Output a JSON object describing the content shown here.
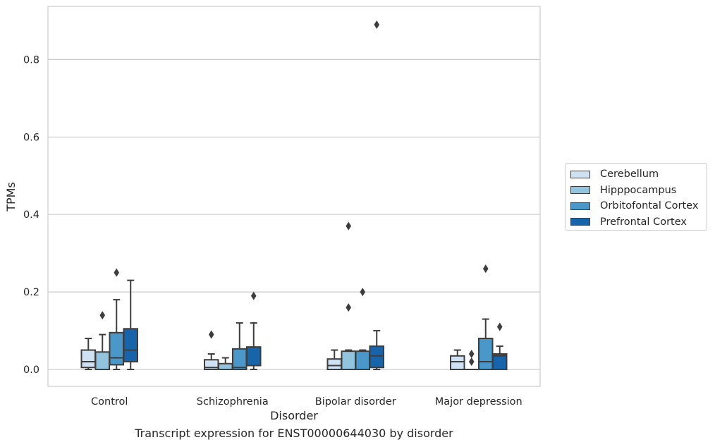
{
  "caption": "Transcript expression for ENST00000644030 by disorder",
  "chart_data": {
    "type": "boxplot",
    "xlabel": "Disorder",
    "ylabel": "TPMs",
    "ylim": [
      -0.043,
      0.935
    ],
    "yticks": [
      "0.0",
      "0.2",
      "0.4",
      "0.6",
      "0.8"
    ],
    "ytick_values": [
      0.0,
      0.2,
      0.4,
      0.6,
      0.8
    ],
    "grid": "horizontal",
    "legend_placement": "outside-right",
    "categories": [
      "Control",
      "Schizophrenia",
      "Bipolar disorder",
      "Major depression"
    ],
    "series": [
      {
        "name": "Cerebellum",
        "color": "#cfe1f2",
        "boxes": [
          {
            "whislo": 0.0,
            "q1": 0.005,
            "med": 0.02,
            "q3": 0.05,
            "whishi": 0.08,
            "fliers": []
          },
          {
            "whislo": 0.0,
            "q1": 0.0,
            "med": 0.005,
            "q3": 0.025,
            "whishi": 0.04,
            "fliers": [
              0.09
            ]
          },
          {
            "whislo": 0.0,
            "q1": 0.0,
            "med": 0.01,
            "q3": 0.027,
            "whishi": 0.05,
            "fliers": []
          },
          {
            "whislo": 0.0,
            "q1": 0.0,
            "med": 0.02,
            "q3": 0.035,
            "whishi": 0.05,
            "fliers": []
          }
        ]
      },
      {
        "name": "Hipppocampus",
        "color": "#93c4de",
        "boxes": [
          {
            "whislo": 0.0,
            "q1": 0.0,
            "med": 0.0,
            "q3": 0.045,
            "whishi": 0.09,
            "fliers": [
              0.14
            ]
          },
          {
            "whislo": 0.0,
            "q1": 0.0,
            "med": 0.0,
            "q3": 0.015,
            "whishi": 0.03,
            "fliers": []
          },
          {
            "whislo": 0.0,
            "q1": 0.0,
            "med": 0.0,
            "q3": 0.047,
            "whishi": 0.05,
            "fliers": [
              0.16,
              0.37
            ]
          },
          {
            "whislo": 0.0,
            "q1": 0.0,
            "med": 0.0,
            "q3": 0.0,
            "whishi": 0.0,
            "fliers": [
              0.02,
              0.04
            ]
          }
        ]
      },
      {
        "name": "Orbitofontal Cortex",
        "color": "#4a98c9",
        "boxes": [
          {
            "whislo": 0.0,
            "q1": 0.012,
            "med": 0.03,
            "q3": 0.095,
            "whishi": 0.18,
            "fliers": [
              0.25
            ]
          },
          {
            "whislo": 0.0,
            "q1": 0.0,
            "med": 0.005,
            "q3": 0.053,
            "whishi": 0.12,
            "fliers": []
          },
          {
            "whislo": 0.0,
            "q1": 0.0,
            "med": 0.0,
            "q3": 0.047,
            "whishi": 0.05,
            "fliers": [
              0.2
            ]
          },
          {
            "whislo": 0.0,
            "q1": 0.0,
            "med": 0.02,
            "q3": 0.08,
            "whishi": 0.13,
            "fliers": [
              0.26
            ]
          }
        ]
      },
      {
        "name": "Prefrontal Cortex",
        "color": "#1764ab",
        "boxes": [
          {
            "whislo": 0.0,
            "q1": 0.02,
            "med": 0.05,
            "q3": 0.105,
            "whishi": 0.23,
            "fliers": []
          },
          {
            "whislo": 0.0,
            "q1": 0.01,
            "med": 0.01,
            "q3": 0.058,
            "whishi": 0.12,
            "fliers": [
              0.19
            ]
          },
          {
            "whislo": 0.0,
            "q1": 0.005,
            "med": 0.035,
            "q3": 0.06,
            "whishi": 0.1,
            "fliers": [
              0.89
            ]
          },
          {
            "whislo": 0.0,
            "q1": 0.0,
            "med": 0.035,
            "q3": 0.04,
            "whishi": 0.06,
            "fliers": [
              0.11
            ]
          }
        ]
      }
    ]
  }
}
